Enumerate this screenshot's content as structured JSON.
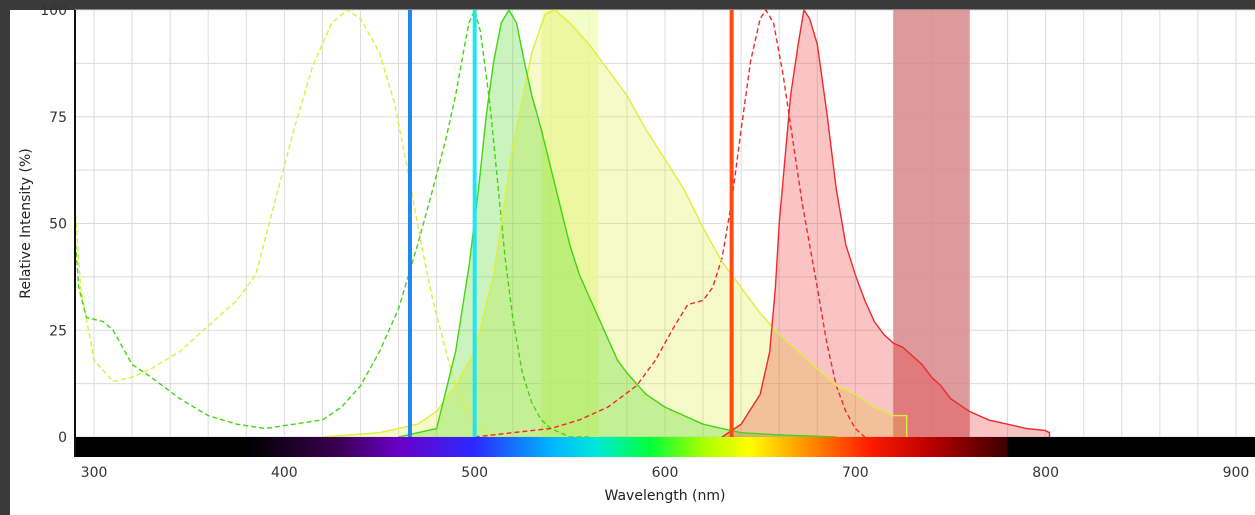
{
  "chart_data": {
    "type": "line",
    "xlabel": "Wavelength (nm)",
    "ylabel": "Relative Intensity (%)",
    "xlim": [
      290,
      910
    ],
    "ylim": [
      0,
      100
    ],
    "x_ticks": [
      300,
      400,
      500,
      600,
      700,
      800,
      900
    ],
    "y_ticks": [
      0,
      25,
      50,
      75,
      100
    ],
    "grid": true,
    "colors": {
      "yellow": "#dfee3a",
      "green": "#44d411",
      "red": "#ee2a2a",
      "laser_blue": "#1e88ee",
      "laser_cyan": "#1ee6f0",
      "laser_orange": "#ff4a12",
      "filter_yellow": "#eefcb4",
      "filter_red": "#d7878a"
    },
    "laser_lines": [
      {
        "wavelength": 466,
        "color": "laser_blue"
      },
      {
        "wavelength": 500,
        "color": "laser_cyan"
      },
      {
        "wavelength": 635,
        "color": "laser_orange"
      }
    ],
    "filter_bands": [
      {
        "start": 535,
        "end": 565,
        "color": "filter_yellow"
      },
      {
        "start": 720,
        "end": 760,
        "color": "filter_red"
      }
    ],
    "series": [
      {
        "style": "dashed",
        "color": "yellow",
        "fill": false,
        "points": [
          [
            290,
            54
          ],
          [
            293,
            35
          ],
          [
            300,
            18
          ],
          [
            310,
            13
          ],
          [
            320,
            14
          ],
          [
            330,
            16
          ],
          [
            345,
            20
          ],
          [
            360,
            26
          ],
          [
            375,
            32
          ],
          [
            385,
            38
          ],
          [
            395,
            55
          ],
          [
            405,
            72
          ],
          [
            415,
            87
          ],
          [
            425,
            97
          ],
          [
            433,
            100
          ],
          [
            440,
            98
          ],
          [
            450,
            90
          ],
          [
            458,
            78
          ],
          [
            465,
            62
          ],
          [
            472,
            45
          ],
          [
            478,
            32
          ],
          [
            485,
            20
          ],
          [
            490,
            12
          ],
          [
            496,
            6
          ],
          [
            500,
            3
          ],
          [
            506,
            1
          ],
          [
            512,
            0
          ],
          [
            520,
            0
          ]
        ]
      },
      {
        "style": "dashed",
        "color": "green",
        "fill": false,
        "points": [
          [
            290,
            47
          ],
          [
            292,
            35
          ],
          [
            296,
            28
          ],
          [
            305,
            27
          ],
          [
            310,
            25
          ],
          [
            315,
            21
          ],
          [
            320,
            17
          ],
          [
            330,
            14
          ],
          [
            345,
            9
          ],
          [
            360,
            5
          ],
          [
            375,
            3
          ],
          [
            390,
            2
          ],
          [
            405,
            3
          ],
          [
            420,
            4
          ],
          [
            430,
            7
          ],
          [
            440,
            12
          ],
          [
            450,
            20
          ],
          [
            460,
            30
          ],
          [
            470,
            45
          ],
          [
            478,
            58
          ],
          [
            485,
            70
          ],
          [
            490,
            80
          ],
          [
            494,
            90
          ],
          [
            497,
            97
          ],
          [
            500,
            100
          ],
          [
            503,
            95
          ],
          [
            508,
            78
          ],
          [
            512,
            60
          ],
          [
            516,
            42
          ],
          [
            520,
            28
          ],
          [
            525,
            15
          ],
          [
            530,
            8
          ],
          [
            535,
            4
          ],
          [
            540,
            2
          ],
          [
            550,
            0
          ],
          [
            560,
            0
          ]
        ]
      },
      {
        "style": "dashed",
        "color": "red",
        "fill": false,
        "points": [
          [
            500,
            0
          ],
          [
            520,
            1
          ],
          [
            540,
            2
          ],
          [
            555,
            4
          ],
          [
            570,
            7
          ],
          [
            585,
            12
          ],
          [
            595,
            18
          ],
          [
            605,
            26
          ],
          [
            612,
            31
          ],
          [
            620,
            32
          ],
          [
            625,
            35
          ],
          [
            630,
            42
          ],
          [
            635,
            55
          ],
          [
            640,
            72
          ],
          [
            645,
            88
          ],
          [
            650,
            98
          ],
          [
            653,
            100
          ],
          [
            657,
            97
          ],
          [
            662,
            85
          ],
          [
            667,
            70
          ],
          [
            672,
            55
          ],
          [
            676,
            45
          ],
          [
            680,
            35
          ],
          [
            685,
            22
          ],
          [
            690,
            12
          ],
          [
            695,
            6
          ],
          [
            700,
            2
          ],
          [
            705,
            0
          ]
        ]
      },
      {
        "style": "solid",
        "color": "yellow",
        "fill": true,
        "points": [
          [
            420,
            0
          ],
          [
            450,
            1
          ],
          [
            470,
            3
          ],
          [
            480,
            6
          ],
          [
            490,
            12
          ],
          [
            500,
            20
          ],
          [
            510,
            38
          ],
          [
            520,
            68
          ],
          [
            530,
            90
          ],
          [
            537,
            99
          ],
          [
            542,
            100
          ],
          [
            550,
            97
          ],
          [
            560,
            92
          ],
          [
            570,
            86
          ],
          [
            580,
            80
          ],
          [
            590,
            72
          ],
          [
            600,
            65
          ],
          [
            610,
            58
          ],
          [
            620,
            49
          ],
          [
            630,
            41
          ],
          [
            640,
            35
          ],
          [
            650,
            29
          ],
          [
            660,
            24
          ],
          [
            670,
            20
          ],
          [
            680,
            16
          ],
          [
            690,
            12
          ],
          [
            700,
            10
          ],
          [
            710,
            7
          ],
          [
            720,
            5
          ],
          [
            727,
            5
          ],
          [
            727,
            0
          ]
        ]
      },
      {
        "style": "solid",
        "color": "green",
        "fill": true,
        "points": [
          [
            460,
            0
          ],
          [
            480,
            2
          ],
          [
            490,
            20
          ],
          [
            497,
            40
          ],
          [
            502,
            58
          ],
          [
            506,
            75
          ],
          [
            510,
            88
          ],
          [
            514,
            97
          ],
          [
            518,
            100
          ],
          [
            522,
            97
          ],
          [
            526,
            88
          ],
          [
            530,
            80
          ],
          [
            535,
            72
          ],
          [
            540,
            63
          ],
          [
            545,
            54
          ],
          [
            550,
            45
          ],
          [
            555,
            38
          ],
          [
            560,
            33
          ],
          [
            565,
            28
          ],
          [
            570,
            23
          ],
          [
            575,
            18
          ],
          [
            580,
            15
          ],
          [
            590,
            10
          ],
          [
            600,
            7
          ],
          [
            610,
            5
          ],
          [
            620,
            3
          ],
          [
            630,
            2
          ],
          [
            640,
            1
          ],
          [
            660,
            0.5
          ],
          [
            690,
            0
          ]
        ]
      },
      {
        "style": "solid",
        "color": "red",
        "fill": true,
        "points": [
          [
            630,
            0
          ],
          [
            640,
            3
          ],
          [
            650,
            10
          ],
          [
            655,
            20
          ],
          [
            658,
            35
          ],
          [
            660,
            50
          ],
          [
            663,
            65
          ],
          [
            666,
            80
          ],
          [
            670,
            92
          ],
          [
            673,
            100
          ],
          [
            676,
            98
          ],
          [
            680,
            92
          ],
          [
            685,
            76
          ],
          [
            690,
            58
          ],
          [
            695,
            45
          ],
          [
            700,
            38
          ],
          [
            705,
            32
          ],
          [
            710,
            27
          ],
          [
            715,
            24
          ],
          [
            720,
            22
          ],
          [
            725,
            21
          ],
          [
            730,
            19
          ],
          [
            735,
            17
          ],
          [
            740,
            14
          ],
          [
            745,
            12
          ],
          [
            750,
            9
          ],
          [
            760,
            6
          ],
          [
            770,
            4
          ],
          [
            780,
            3
          ],
          [
            790,
            2
          ],
          [
            800,
            1.5
          ],
          [
            802,
            1
          ],
          [
            802,
            0
          ]
        ]
      }
    ]
  }
}
